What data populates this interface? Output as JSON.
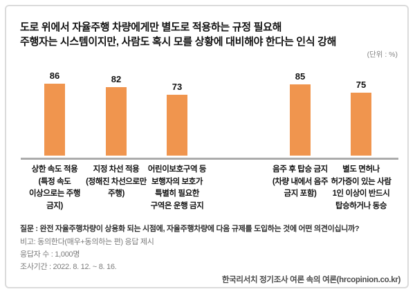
{
  "title": {
    "line1": "도로 위에서 자율주행 차량에게만 별도로 적용하는 규정 필요해",
    "line2": "주행자는 시스템이지만, 사람도 혹시 모를 상황에 대비해야 한다는 인식 강해"
  },
  "unit_label": "(단위 : %)",
  "chart_data": {
    "type": "bar",
    "title": "도로 위에서 자율주행 차량에게만 별도로 적용하는 규정 필요해",
    "subtitle": "주행자는 시스템이지만, 사람도 혹시 모를 상황에 대비해야 한다는 인식 강해",
    "unit": "%",
    "categories": [
      "상한 속도 적용 (특정 속도 이상으로는 주행 금지)",
      "지정 차선 적용 (정해진 차선으로만 주행)",
      "어린이보호구역 등 보행자의 보호가 특별히 필요한 구역은 운행 금지",
      "음주 후 탑승 금지 (차량 내에서 음주 금지 포함)",
      "별도 면허나 허가증이 있는 사람 1인 이상이 반드시 탑승하거나 동승"
    ],
    "category_lines": [
      "상한 속도 적용\n(특정 속도\n이상으로는 주행\n금지)",
      "지정 차선 적용\n(정해진 차선으로만\n주행)",
      "어린이보호구역 등\n보행자의 보호가\n특별히 필요한\n구역은 운행 금지",
      "음주 후 탑승 금지\n(차량 내에서 음주\n금지 포함)",
      "별도 면허나\n허가증이 있는 사람\n1인 이상이 반드시\n탑승하거나 동승"
    ],
    "values": [
      86,
      82,
      73,
      85,
      75
    ],
    "ylim": [
      0,
      100
    ],
    "grid": false,
    "legend": "none",
    "value_labels_shown": true,
    "bar_color": "#F0954E",
    "axis_color": "#ABABAB",
    "groups": [
      [
        0,
        1,
        2
      ],
      [
        3,
        4
      ]
    ]
  },
  "footer": {
    "question": "질문 : 완전 자율주행차량이 상용화 되는 시점에, 자율주행차량에 다음 규제를 도입하는 것에 어떤 의견이십니까?",
    "note": "비고: 동의한다(매우+동의하는 편) 응답 제시",
    "respondents": "응답자 수 : 1,000명",
    "period": "조사기간 : 2022. 8. 12. ~ 8. 16.",
    "source": "한국리서치 정기조사 여론 속의 여론(hrcopinion.co.kr)"
  }
}
